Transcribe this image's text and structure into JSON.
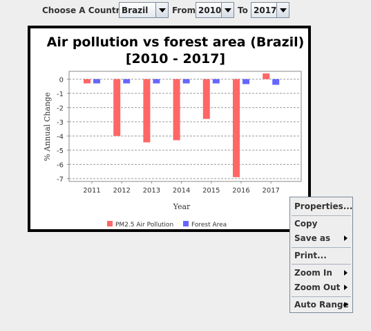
{
  "toolbar": {
    "country_label": "Choose A Country:",
    "country_value": "Brazil",
    "from_label": "From",
    "from_value": "2010",
    "to_label": "To",
    "to_value": "2017"
  },
  "chart_data": {
    "type": "bar",
    "title_line1": "Air pollution vs forest area (Brazil)",
    "title_line2": "[2010 - 2017]",
    "xlabel": "Year",
    "ylabel": "% Annual Change",
    "categories": [
      "2011",
      "2012",
      "2013",
      "2014",
      "2015",
      "2016",
      "2017"
    ],
    "y_ticks": [
      "0",
      "-1",
      "-2",
      "-3",
      "-4",
      "-5",
      "-6",
      "-7"
    ],
    "ylim": [
      -7.2,
      0.55
    ],
    "series": [
      {
        "name": "PM2.5 Air Pollution",
        "color": "#ff6666",
        "values": [
          -0.3,
          -4.0,
          -4.45,
          -4.3,
          -2.8,
          -6.9,
          0.4
        ]
      },
      {
        "name": "Forest Area",
        "color": "#6666ff",
        "values": [
          -0.3,
          -0.3,
          -0.3,
          -0.3,
          -0.3,
          -0.35,
          -0.4
        ]
      }
    ],
    "grid": true,
    "legend": "bottom"
  },
  "context_menu": {
    "items": [
      {
        "label": "Properties...",
        "submenu": false
      },
      {
        "label": "Copy",
        "submenu": false
      },
      {
        "label": "Save as",
        "submenu": true
      },
      {
        "label": "Print...",
        "submenu": false
      },
      {
        "label": "Zoom In",
        "submenu": true
      },
      {
        "label": "Zoom Out",
        "submenu": true
      },
      {
        "label": "Auto Range",
        "submenu": true
      }
    ]
  }
}
